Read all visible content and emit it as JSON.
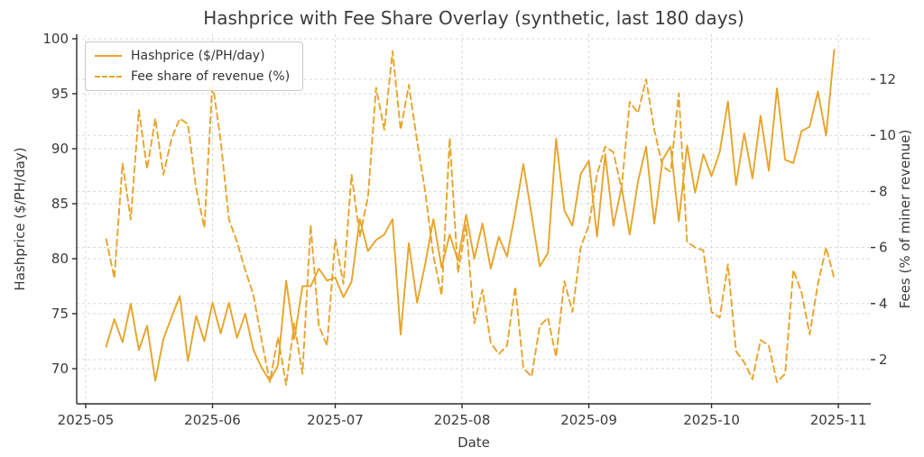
{
  "colors": {
    "line": "#E7A42A",
    "grid": "#d8d8d8",
    "spine": "#2e2e2e",
    "text": "#3a3a3a"
  },
  "chart_data": {
    "type": "line",
    "title": "Hashprice with Fee Share Overlay (synthetic, last 180 days)",
    "xlabel": "Date",
    "ylabel_left": "Hashprice ($/PH/day)",
    "ylabel_right": "Fees (% of miner revenue)",
    "x_tick_labels": [
      "2025-05",
      "2025-06",
      "2025-07",
      "2025-08",
      "2025-09",
      "2025-10",
      "2025-11"
    ],
    "y_left_ticks": [
      70,
      75,
      80,
      85,
      90,
      95,
      100
    ],
    "y_right_ticks": [
      2,
      4,
      6,
      8,
      10,
      12
    ],
    "ylim_left": [
      66.8,
      100.4
    ],
    "ylim_right": [
      0.4,
      13.6
    ],
    "grid": "on",
    "legend_position": "upper left",
    "legend": [
      {
        "label": "Hashprice ($/PH/day)",
        "style": "solid"
      },
      {
        "label": "Fee share of revenue (%)",
        "style": "dashed"
      }
    ],
    "dates": [
      "2025-05-06",
      "2025-05-08",
      "2025-05-10",
      "2025-05-12",
      "2025-05-14",
      "2025-05-16",
      "2025-05-18",
      "2025-05-20",
      "2025-05-22",
      "2025-05-24",
      "2025-05-26",
      "2025-05-28",
      "2025-05-30",
      "2025-06-01",
      "2025-06-03",
      "2025-06-05",
      "2025-06-07",
      "2025-06-09",
      "2025-06-11",
      "2025-06-13",
      "2025-06-15",
      "2025-06-17",
      "2025-06-19",
      "2025-06-21",
      "2025-06-23",
      "2025-06-25",
      "2025-06-27",
      "2025-06-29",
      "2025-07-01",
      "2025-07-03",
      "2025-07-05",
      "2025-07-07",
      "2025-07-09",
      "2025-07-11",
      "2025-07-13",
      "2025-07-15",
      "2025-07-17",
      "2025-07-19",
      "2025-07-21",
      "2025-07-23",
      "2025-07-25",
      "2025-07-27",
      "2025-07-29",
      "2025-07-31",
      "2025-08-02",
      "2025-08-04",
      "2025-08-06",
      "2025-08-08",
      "2025-08-10",
      "2025-08-12",
      "2025-08-14",
      "2025-08-16",
      "2025-08-18",
      "2025-08-20",
      "2025-08-22",
      "2025-08-24",
      "2025-08-26",
      "2025-08-28",
      "2025-08-30",
      "2025-09-01",
      "2025-09-03",
      "2025-09-05",
      "2025-09-07",
      "2025-09-09",
      "2025-09-11",
      "2025-09-13",
      "2025-09-15",
      "2025-09-17",
      "2025-09-19",
      "2025-09-21",
      "2025-09-23",
      "2025-09-25",
      "2025-09-27",
      "2025-09-29",
      "2025-10-01",
      "2025-10-03",
      "2025-10-05",
      "2025-10-07",
      "2025-10-09",
      "2025-10-11",
      "2025-10-13",
      "2025-10-15",
      "2025-10-17",
      "2025-10-19",
      "2025-10-21",
      "2025-10-23",
      "2025-10-25",
      "2025-10-27",
      "2025-10-29",
      "2025-10-31"
    ],
    "series": [
      {
        "name": "Hashprice ($/PH/day)",
        "axis": "left",
        "style": "solid",
        "values": [
          72.0,
          74.5,
          72.4,
          75.9,
          71.7,
          73.9,
          68.9,
          72.7,
          74.7,
          76.6,
          70.7,
          74.8,
          72.5,
          76.0,
          73.2,
          76.0,
          72.8,
          75.0,
          71.7,
          70.1,
          68.9,
          70.3,
          78.0,
          72.7,
          77.5,
          77.5,
          79.1,
          78.0,
          78.3,
          76.5,
          77.9,
          83.6,
          80.7,
          81.7,
          82.2,
          83.6,
          73.1,
          81.4,
          76.0,
          79.5,
          83.6,
          79.2,
          82.2,
          79.8,
          84.0,
          80.0,
          83.2,
          79.1,
          82.0,
          80.2,
          84.2,
          88.6,
          84.0,
          79.3,
          80.5,
          90.9,
          84.4,
          83.0,
          87.7,
          88.9,
          82.0,
          89.5,
          83.0,
          86.5,
          82.2,
          87.0,
          90.2,
          83.2,
          89.0,
          90.2,
          83.4,
          90.3,
          86.0,
          89.5,
          87.5,
          89.7,
          94.3,
          86.7,
          91.4,
          87.3,
          93.0,
          88.0,
          95.5,
          89.0,
          88.7,
          91.6,
          92.0,
          95.2,
          91.2,
          99.0
        ]
      },
      {
        "name": "Fee share of revenue (%)",
        "axis": "right",
        "style": "dashed",
        "values": [
          6.3,
          4.9,
          9.0,
          7.0,
          10.9,
          8.8,
          10.6,
          8.6,
          9.9,
          10.6,
          10.4,
          8.1,
          6.7,
          11.9,
          9.8,
          7.0,
          6.2,
          5.2,
          4.3,
          2.7,
          1.2,
          2.8,
          1.1,
          3.3,
          1.5,
          6.8,
          3.2,
          2.5,
          6.3,
          4.7,
          8.6,
          6.4,
          7.8,
          11.7,
          10.2,
          13.0,
          10.2,
          11.8,
          9.8,
          8.0,
          5.7,
          4.3,
          9.9,
          5.1,
          6.8,
          3.3,
          4.5,
          2.6,
          2.2,
          2.5,
          4.6,
          1.7,
          1.4,
          3.2,
          3.5,
          2.1,
          4.8,
          3.7,
          6.0,
          6.8,
          8.6,
          9.6,
          9.4,
          8.1,
          11.2,
          10.8,
          12.0,
          10.2,
          8.9,
          8.7,
          11.5,
          6.2,
          6.0,
          5.9,
          3.7,
          3.5,
          5.4,
          2.3,
          1.9,
          1.3,
          2.7,
          2.5,
          1.2,
          1.5,
          5.2,
          4.4,
          2.9,
          4.7,
          6.0,
          4.9
        ]
      }
    ]
  }
}
